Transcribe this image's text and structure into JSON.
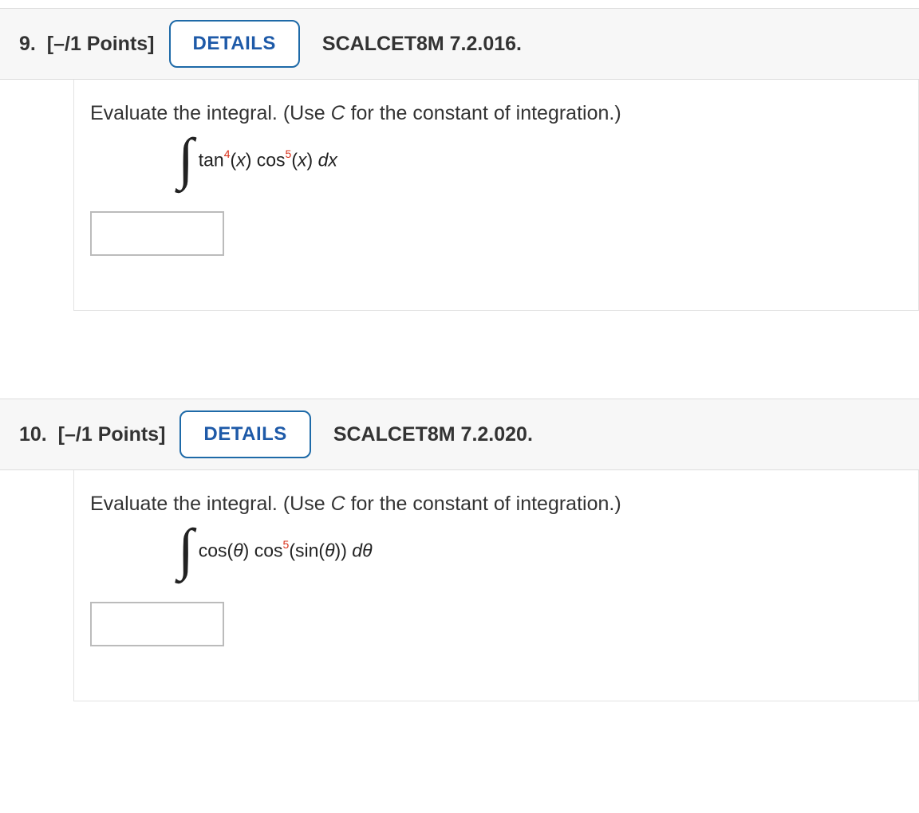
{
  "questions": [
    {
      "number": "9.",
      "points": "[–/1 Points]",
      "details_label": "DETAILS",
      "source": "SCALCET8M 7.2.016.",
      "prompt_before": "Evaluate the integral. (Use ",
      "prompt_const": "C",
      "prompt_after": " for the constant of integration.)",
      "math": {
        "t1": "tan",
        "e1": "4",
        "a1": "(",
        "v1": "x",
        "p1": ") ",
        "t2": "cos",
        "e2": "5",
        "a2": "(",
        "v2": "x",
        "p2": ") ",
        "d": "d",
        "dv": "x"
      }
    },
    {
      "number": "10.",
      "points": "[–/1 Points]",
      "details_label": "DETAILS",
      "source": "SCALCET8M 7.2.020.",
      "prompt_before": "Evaluate the integral. (Use ",
      "prompt_const": "C",
      "prompt_after": " for the constant of integration.)",
      "math": {
        "t1": "cos(",
        "v1": "θ",
        "p1": ") ",
        "t2": "cos",
        "e2": "5",
        "a2": "(sin(",
        "v2": "θ",
        "p2": ")) ",
        "d": "d",
        "dv": "θ"
      }
    }
  ]
}
